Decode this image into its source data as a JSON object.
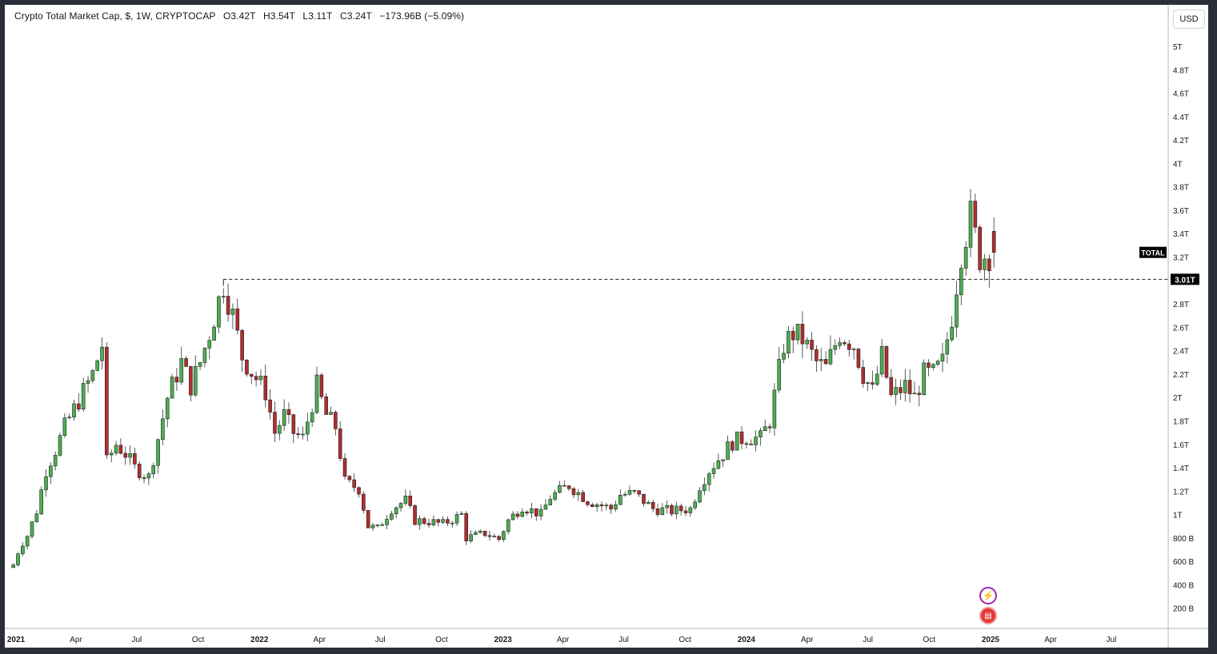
{
  "header": {
    "symbol_name": "Crypto Total Market Cap, $, 1W, CRYPTOCAP",
    "open": "O3.42T",
    "high": "H3.54T",
    "low": "L3.11T",
    "close": "C3.24T",
    "change": "−173.96B (−5.09%)"
  },
  "currency_label": "USD",
  "symbol_tag": "TOTAL",
  "level_label": "3.01T",
  "icons": {
    "bolt": "bolt-icon",
    "flag": "us-flag-icon"
  },
  "colors": {
    "up": "#2e7d32",
    "up_fill": "#4caf50",
    "down": "#7f1d1d",
    "down_fill": "#b22d2d"
  },
  "chart_data": {
    "type": "candlestick",
    "interval": "1W",
    "y_scale": "linear",
    "ylim": [
      0,
      5.3
    ],
    "y_ticks": [
      {
        "v": 0.2,
        "label": "200 B"
      },
      {
        "v": 0.4,
        "label": "400 B"
      },
      {
        "v": 0.6,
        "label": "600 B"
      },
      {
        "v": 0.8,
        "label": "800 B"
      },
      {
        "v": 1.0,
        "label": "1T"
      },
      {
        "v": 1.2,
        "label": "1.2T"
      },
      {
        "v": 1.4,
        "label": "1.4T"
      },
      {
        "v": 1.6,
        "label": "1.6T"
      },
      {
        "v": 1.8,
        "label": "1.8T"
      },
      {
        "v": 2.0,
        "label": "2T"
      },
      {
        "v": 2.2,
        "label": "2.2T"
      },
      {
        "v": 2.4,
        "label": "2.4T"
      },
      {
        "v": 2.6,
        "label": "2.6T"
      },
      {
        "v": 2.8,
        "label": "2.8T"
      },
      {
        "v": 3.2,
        "label": "3.2T"
      },
      {
        "v": 3.4,
        "label": "3.4T"
      },
      {
        "v": 3.6,
        "label": "3.6T"
      },
      {
        "v": 3.8,
        "label": "3.8T"
      },
      {
        "v": 4.0,
        "label": "4T"
      },
      {
        "v": 4.2,
        "label": "4.2T"
      },
      {
        "v": 4.4,
        "label": "4.4T"
      },
      {
        "v": 4.6,
        "label": "4.6T"
      },
      {
        "v": 4.8,
        "label": "4.8T"
      },
      {
        "v": 5.0,
        "label": "5T"
      }
    ],
    "x_ticks": [
      {
        "date": "2021-01-01",
        "label": "2021",
        "bold": true
      },
      {
        "date": "2021-04-01",
        "label": "Apr"
      },
      {
        "date": "2021-07-01",
        "label": "Jul"
      },
      {
        "date": "2021-10-01",
        "label": "Oct"
      },
      {
        "date": "2022-01-01",
        "label": "2022",
        "bold": true
      },
      {
        "date": "2022-04-01",
        "label": "Apr"
      },
      {
        "date": "2022-07-01",
        "label": "Jul"
      },
      {
        "date": "2022-10-01",
        "label": "Oct"
      },
      {
        "date": "2023-01-01",
        "label": "2023",
        "bold": true
      },
      {
        "date": "2023-04-01",
        "label": "Apr"
      },
      {
        "date": "2023-07-01",
        "label": "Jul"
      },
      {
        "date": "2023-10-01",
        "label": "Oct"
      },
      {
        "date": "2024-01-01",
        "label": "2024",
        "bold": true
      },
      {
        "date": "2024-04-01",
        "label": "Apr"
      },
      {
        "date": "2024-07-01",
        "label": "Jul"
      },
      {
        "date": "2024-10-01",
        "label": "Oct"
      },
      {
        "date": "2025-01-01",
        "label": "2025",
        "bold": true
      },
      {
        "date": "2025-04-01",
        "label": "Apr"
      },
      {
        "date": "2025-07-01",
        "label": "Jul"
      }
    ],
    "start_date": "2020-12-28",
    "close_path": [
      [
        "2020-12-28",
        0.57
      ],
      [
        "2021-01-04",
        0.68
      ],
      [
        "2021-01-11",
        0.76
      ],
      [
        "2021-01-18",
        0.82
      ],
      [
        "2021-02-01",
        1.03
      ],
      [
        "2021-02-15",
        1.38
      ],
      [
        "2021-03-01",
        1.55
      ],
      [
        "2021-03-15",
        1.75
      ],
      [
        "2021-03-29",
        1.9
      ],
      [
        "2021-04-12",
        2.05
      ],
      [
        "2021-04-26",
        2.2
      ],
      [
        "2021-05-10",
        2.45
      ],
      [
        "2021-05-17",
        1.45
      ],
      [
        "2021-05-31",
        1.6
      ],
      [
        "2021-06-14",
        1.52
      ],
      [
        "2021-06-28",
        1.4
      ],
      [
        "2021-07-19",
        1.32
      ],
      [
        "2021-08-02",
        1.65
      ],
      [
        "2021-08-16",
        2.0
      ],
      [
        "2021-09-06",
        2.3
      ],
      [
        "2021-09-20",
        2.1
      ],
      [
        "2021-10-04",
        2.3
      ],
      [
        "2021-10-18",
        2.55
      ],
      [
        "2021-11-08",
        2.97
      ],
      [
        "2021-11-22",
        2.7
      ],
      [
        "2021-12-06",
        2.35
      ],
      [
        "2021-12-20",
        2.22
      ],
      [
        "2022-01-10",
        2.05
      ],
      [
        "2022-01-24",
        1.7
      ],
      [
        "2022-02-07",
        1.85
      ],
      [
        "2022-02-21",
        1.7
      ],
      [
        "2022-03-07",
        1.65
      ],
      [
        "2022-03-28",
        2.1
      ],
      [
        "2022-04-11",
        1.85
      ],
      [
        "2022-04-25",
        1.75
      ],
      [
        "2022-05-09",
        1.28
      ],
      [
        "2022-05-30",
        1.22
      ],
      [
        "2022-06-13",
        0.9
      ],
      [
        "2022-06-27",
        0.88
      ],
      [
        "2022-07-18",
        1.05
      ],
      [
        "2022-08-08",
        1.12
      ],
      [
        "2022-08-22",
        0.95
      ],
      [
        "2022-09-12",
        0.94
      ],
      [
        "2022-10-03",
        0.92
      ],
      [
        "2022-10-31",
        1.0
      ],
      [
        "2022-11-07",
        0.8
      ],
      [
        "2022-12-05",
        0.84
      ],
      [
        "2022-12-26",
        0.79
      ],
      [
        "2023-01-09",
        0.95
      ],
      [
        "2023-01-30",
        1.07
      ],
      [
        "2023-02-27",
        1.0
      ],
      [
        "2023-03-13",
        1.15
      ],
      [
        "2023-04-10",
        1.25
      ],
      [
        "2023-05-08",
        1.12
      ],
      [
        "2023-06-12",
        1.05
      ],
      [
        "2023-06-26",
        1.17
      ],
      [
        "2023-07-17",
        1.18
      ],
      [
        "2023-08-14",
        1.05
      ],
      [
        "2023-09-11",
        1.03
      ],
      [
        "2023-10-09",
        1.05
      ],
      [
        "2023-10-23",
        1.25
      ],
      [
        "2023-11-06",
        1.38
      ],
      [
        "2023-11-27",
        1.52
      ],
      [
        "2023-12-11",
        1.62
      ],
      [
        "2024-01-01",
        1.66
      ],
      [
        "2024-01-22",
        1.65
      ],
      [
        "2024-02-05",
        1.8
      ],
      [
        "2024-02-26",
        2.45
      ],
      [
        "2024-03-11",
        2.55
      ],
      [
        "2024-03-25",
        2.5
      ],
      [
        "2024-04-15",
        2.3
      ],
      [
        "2024-04-29",
        2.25
      ],
      [
        "2024-05-20",
        2.55
      ],
      [
        "2024-06-10",
        2.45
      ],
      [
        "2024-06-24",
        2.2
      ],
      [
        "2024-07-08",
        2.05
      ],
      [
        "2024-07-22",
        2.35
      ],
      [
        "2024-08-05",
        2.0
      ],
      [
        "2024-08-26",
        2.1
      ],
      [
        "2024-09-09",
        2.0
      ],
      [
        "2024-09-23",
        2.2
      ],
      [
        "2024-10-07",
        2.2
      ],
      [
        "2024-10-21",
        2.3
      ],
      [
        "2024-11-04",
        2.7
      ],
      [
        "2024-11-18",
        3.25
      ],
      [
        "2024-12-02",
        3.55
      ],
      [
        "2024-12-16",
        3.2
      ],
      [
        "2025-01-06",
        3.24
      ]
    ],
    "last_bar": {
      "date": "2025-01-06",
      "open": 3.42,
      "high": 3.54,
      "low": 3.11,
      "close": 3.24
    },
    "horizontal_level": {
      "value": 3.01,
      "from": "2021-11-08"
    }
  }
}
